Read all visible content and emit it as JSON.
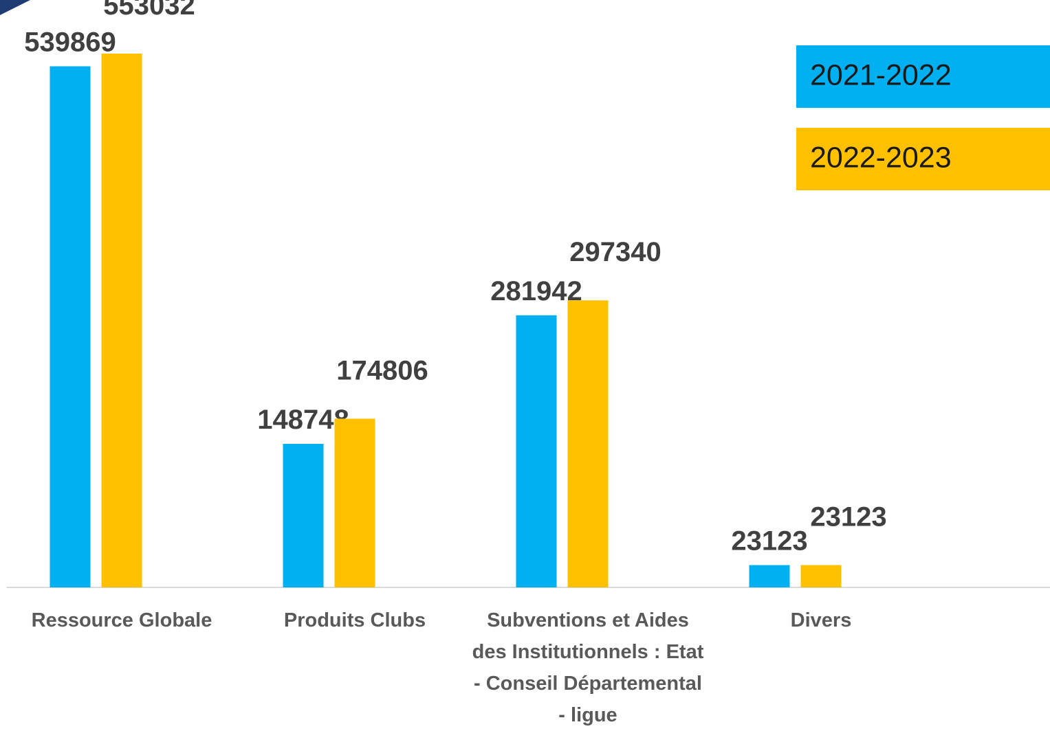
{
  "chart_data": {
    "type": "bar",
    "categories": [
      "Ressource Globale",
      "Produits Clubs",
      "Subventions et Aides des Institutionnels : Etat - Conseil Départemental - ligue",
      "Divers"
    ],
    "series": [
      {
        "name": "2021-2022",
        "color": "#00b0f0",
        "values": [
          539869,
          148748,
          281942,
          23123
        ]
      },
      {
        "name": "2022-2023",
        "color": "#ffc000",
        "values": [
          553032,
          174806,
          297340,
          23123
        ]
      }
    ],
    "legend": "top-right"
  }
}
